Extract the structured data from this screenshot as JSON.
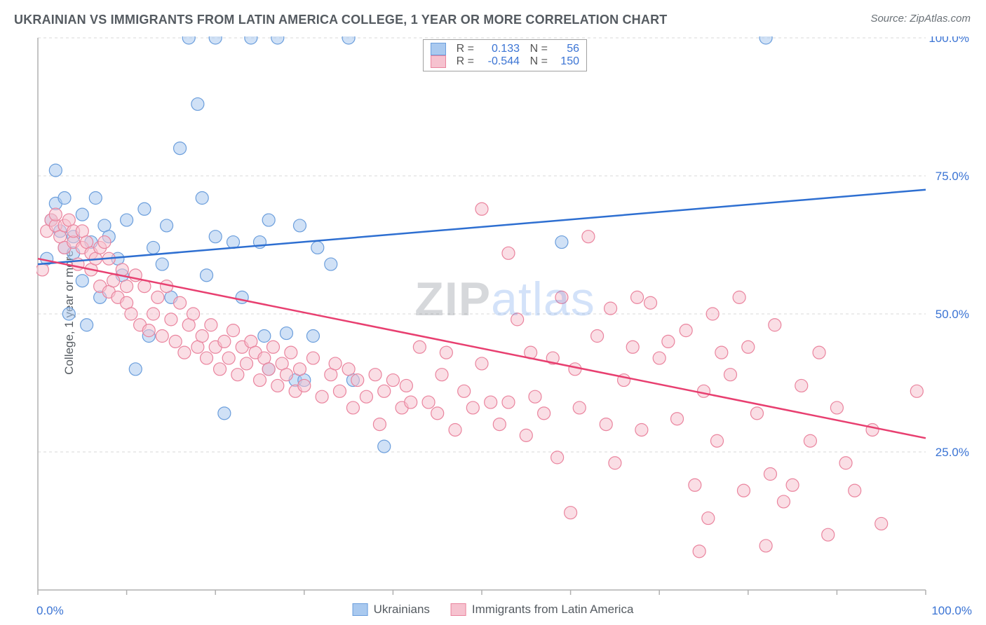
{
  "title": "UKRAINIAN VS IMMIGRANTS FROM LATIN AMERICA COLLEGE, 1 YEAR OR MORE CORRELATION CHART",
  "source": "Source: ZipAtlas.com",
  "ylabel": "College, 1 year or more",
  "watermark_z": "ZIP",
  "watermark_rest": "atlas",
  "chart": {
    "type": "scatter",
    "xlim": [
      0,
      100
    ],
    "ylim": [
      0,
      100
    ],
    "y_ticks": [
      25,
      50,
      75,
      100
    ],
    "y_tick_labels": [
      "25.0%",
      "50.0%",
      "75.0%",
      "100.0%"
    ],
    "x_ticks": [
      0,
      10,
      20,
      30,
      40,
      50,
      60,
      70,
      80,
      90,
      100
    ],
    "x_axis_labels": {
      "left": "0.0%",
      "right": "100.0%"
    },
    "background_color": "#ffffff",
    "grid_color": "#d8d8d8",
    "axis_color": "#b0b0b0",
    "marker_radius": 9,
    "marker_opacity": 0.55,
    "line_width": 2.5,
    "series": [
      {
        "name": "Ukrainians",
        "color_fill": "#a9c9ef",
        "color_stroke": "#6b9edc",
        "line_color": "#2e6fd1",
        "r": "0.133",
        "n": "56",
        "trend": {
          "x1": 0,
          "y1": 59,
          "x2": 100,
          "y2": 72.5
        },
        "points": [
          [
            1,
            60
          ],
          [
            1.5,
            67
          ],
          [
            2,
            76
          ],
          [
            2,
            70
          ],
          [
            2.5,
            65
          ],
          [
            3,
            62
          ],
          [
            3,
            71
          ],
          [
            3.5,
            50
          ],
          [
            4,
            64
          ],
          [
            4,
            61
          ],
          [
            5,
            68
          ],
          [
            5,
            56
          ],
          [
            5.5,
            48
          ],
          [
            6,
            63
          ],
          [
            6.5,
            71
          ],
          [
            7,
            53
          ],
          [
            7.5,
            66
          ],
          [
            8,
            64
          ],
          [
            9,
            60
          ],
          [
            9.5,
            57
          ],
          [
            10,
            67
          ],
          [
            11,
            40
          ],
          [
            12,
            69
          ],
          [
            12.5,
            46
          ],
          [
            13,
            62
          ],
          [
            14,
            59
          ],
          [
            14.5,
            66
          ],
          [
            15,
            53
          ],
          [
            16,
            80
          ],
          [
            17,
            100
          ],
          [
            18,
            88
          ],
          [
            18.5,
            71
          ],
          [
            19,
            57
          ],
          [
            20,
            100
          ],
          [
            20,
            64
          ],
          [
            21,
            32
          ],
          [
            22,
            63
          ],
          [
            23,
            53
          ],
          [
            24,
            100
          ],
          [
            25,
            63
          ],
          [
            25.5,
            46
          ],
          [
            26,
            67
          ],
          [
            26,
            40
          ],
          [
            27,
            100
          ],
          [
            28,
            46.5
          ],
          [
            29,
            38
          ],
          [
            29.5,
            66
          ],
          [
            30,
            38
          ],
          [
            31,
            46
          ],
          [
            31.5,
            62
          ],
          [
            33,
            59
          ],
          [
            35,
            100
          ],
          [
            35.5,
            38
          ],
          [
            39,
            26
          ],
          [
            59,
            63
          ],
          [
            82,
            100
          ]
        ]
      },
      {
        "name": "Immigrants from Latin America",
        "color_fill": "#f6c2cf",
        "color_stroke": "#ea849e",
        "line_color": "#e83f70",
        "r": "-0.544",
        "n": "150",
        "trend": {
          "x1": 0,
          "y1": 60,
          "x2": 100,
          "y2": 27.5
        },
        "points": [
          [
            0.5,
            58
          ],
          [
            1,
            65
          ],
          [
            1.5,
            67
          ],
          [
            2,
            66
          ],
          [
            2,
            68
          ],
          [
            2.5,
            64
          ],
          [
            3,
            66
          ],
          [
            3,
            62
          ],
          [
            3.5,
            67
          ],
          [
            4,
            63
          ],
          [
            4,
            65
          ],
          [
            4.5,
            59
          ],
          [
            5,
            62
          ],
          [
            5,
            65
          ],
          [
            5.5,
            63
          ],
          [
            6,
            58
          ],
          [
            6,
            61
          ],
          [
            6.5,
            60
          ],
          [
            7,
            55
          ],
          [
            7,
            62
          ],
          [
            7.5,
            63
          ],
          [
            8,
            54
          ],
          [
            8,
            60
          ],
          [
            8.5,
            56
          ],
          [
            9,
            53
          ],
          [
            9.5,
            58
          ],
          [
            10,
            55
          ],
          [
            10,
            52
          ],
          [
            10.5,
            50
          ],
          [
            11,
            57
          ],
          [
            11.5,
            48
          ],
          [
            12,
            55
          ],
          [
            12.5,
            47
          ],
          [
            13,
            50
          ],
          [
            13.5,
            53
          ],
          [
            14,
            46
          ],
          [
            14.5,
            55
          ],
          [
            15,
            49
          ],
          [
            15.5,
            45
          ],
          [
            16,
            52
          ],
          [
            16.5,
            43
          ],
          [
            17,
            48
          ],
          [
            17.5,
            50
          ],
          [
            18,
            44
          ],
          [
            18.5,
            46
          ],
          [
            19,
            42
          ],
          [
            19.5,
            48
          ],
          [
            20,
            44
          ],
          [
            20.5,
            40
          ],
          [
            21,
            45
          ],
          [
            21.5,
            42
          ],
          [
            22,
            47
          ],
          [
            22.5,
            39
          ],
          [
            23,
            44
          ],
          [
            23.5,
            41
          ],
          [
            24,
            45
          ],
          [
            24.5,
            43
          ],
          [
            25,
            38
          ],
          [
            25.5,
            42
          ],
          [
            26,
            40
          ],
          [
            26.5,
            44
          ],
          [
            27,
            37
          ],
          [
            27.5,
            41
          ],
          [
            28,
            39
          ],
          [
            28.5,
            43
          ],
          [
            29,
            36
          ],
          [
            29.5,
            40
          ],
          [
            30,
            37
          ],
          [
            31,
            42
          ],
          [
            32,
            35
          ],
          [
            33,
            39
          ],
          [
            33.5,
            41
          ],
          [
            34,
            36
          ],
          [
            35,
            40
          ],
          [
            35.5,
            33
          ],
          [
            36,
            38
          ],
          [
            37,
            35
          ],
          [
            38,
            39
          ],
          [
            38.5,
            30
          ],
          [
            39,
            36
          ],
          [
            40,
            38
          ],
          [
            41,
            33
          ],
          [
            41.5,
            37
          ],
          [
            42,
            34
          ],
          [
            43,
            44
          ],
          [
            44,
            34
          ],
          [
            45,
            32
          ],
          [
            45.5,
            39
          ],
          [
            46,
            43
          ],
          [
            47,
            29
          ],
          [
            48,
            36
          ],
          [
            49,
            33
          ],
          [
            50,
            69
          ],
          [
            50,
            41
          ],
          [
            51,
            34
          ],
          [
            52,
            30
          ],
          [
            53,
            61
          ],
          [
            53,
            34
          ],
          [
            54,
            49
          ],
          [
            55,
            28
          ],
          [
            55.5,
            43
          ],
          [
            56,
            35
          ],
          [
            57,
            32
          ],
          [
            58,
            42
          ],
          [
            58.5,
            24
          ],
          [
            59,
            53
          ],
          [
            60,
            14
          ],
          [
            60.5,
            40
          ],
          [
            61,
            33
          ],
          [
            62,
            64
          ],
          [
            63,
            46
          ],
          [
            64,
            30
          ],
          [
            64.5,
            51
          ],
          [
            65,
            23
          ],
          [
            66,
            38
          ],
          [
            67,
            44
          ],
          [
            67.5,
            53
          ],
          [
            68,
            29
          ],
          [
            69,
            52
          ],
          [
            70,
            42
          ],
          [
            71,
            45
          ],
          [
            72,
            31
          ],
          [
            73,
            47
          ],
          [
            74,
            19
          ],
          [
            74.5,
            7
          ],
          [
            75,
            36
          ],
          [
            75.5,
            13
          ],
          [
            76,
            50
          ],
          [
            76.5,
            27
          ],
          [
            77,
            43
          ],
          [
            78,
            39
          ],
          [
            79,
            53
          ],
          [
            79.5,
            18
          ],
          [
            80,
            44
          ],
          [
            81,
            32
          ],
          [
            82,
            8
          ],
          [
            82.5,
            21
          ],
          [
            83,
            48
          ],
          [
            84,
            16
          ],
          [
            85,
            19
          ],
          [
            86,
            37
          ],
          [
            87,
            27
          ],
          [
            88,
            43
          ],
          [
            89,
            10
          ],
          [
            90,
            33
          ],
          [
            91,
            23
          ],
          [
            92,
            18
          ],
          [
            94,
            29
          ],
          [
            95,
            12
          ],
          [
            99,
            36
          ]
        ]
      }
    ]
  },
  "legend_bottom": [
    {
      "label": "Ukrainians",
      "fill": "#a9c9ef",
      "stroke": "#6b9edc"
    },
    {
      "label": "Immigrants from Latin America",
      "fill": "#f6c2cf",
      "stroke": "#ea849e"
    }
  ]
}
